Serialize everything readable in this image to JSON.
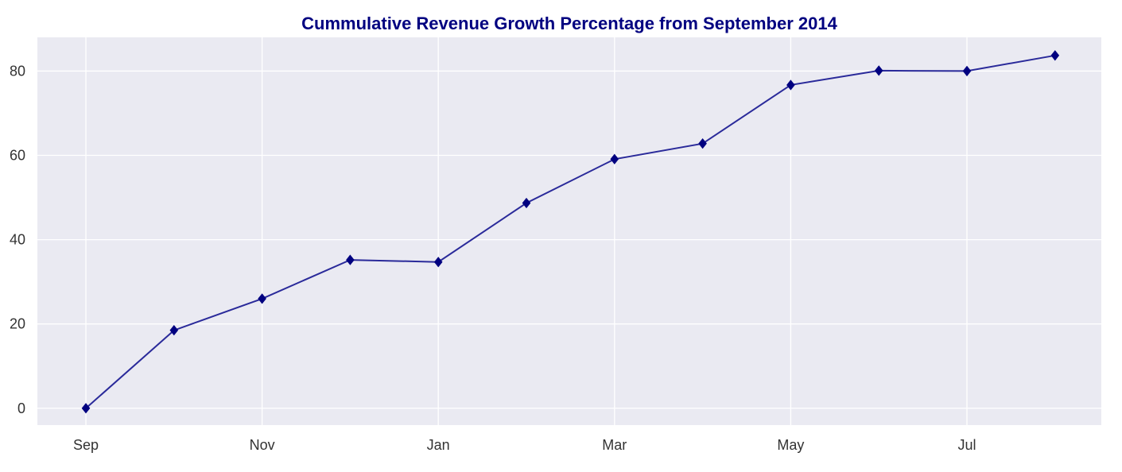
{
  "chart_data": {
    "type": "line",
    "title": "Cummulative Revenue Growth Percentage from September 2014",
    "xlabel": "",
    "ylabel": "",
    "x": [
      "2014-09",
      "2014-10",
      "2014-11",
      "2014-12",
      "2015-01",
      "2015-02",
      "2015-03",
      "2015-04",
      "2015-05",
      "2015-06",
      "2015-07",
      "2015-08"
    ],
    "x_tick_labels": [
      "Sep",
      "Nov",
      "Jan",
      "Mar",
      "May",
      "Jul"
    ],
    "y_ticks": [
      0,
      20,
      40,
      60,
      80
    ],
    "ylim": [
      -4,
      88
    ],
    "grid": true,
    "legend": "none",
    "series": [
      {
        "marker": "diamond",
        "values": [
          0,
          18.5,
          26,
          35.2,
          34.7,
          48.7,
          59.1,
          62.8,
          76.7,
          80.1,
          80.0,
          83.7
        ]
      }
    ]
  },
  "colors": {
    "plot_background": "#eaeaf2",
    "grid": "#ffffff",
    "line": "#2a2a9a",
    "marker": "#000080",
    "title": "#000080",
    "tick_text": "#333333"
  }
}
